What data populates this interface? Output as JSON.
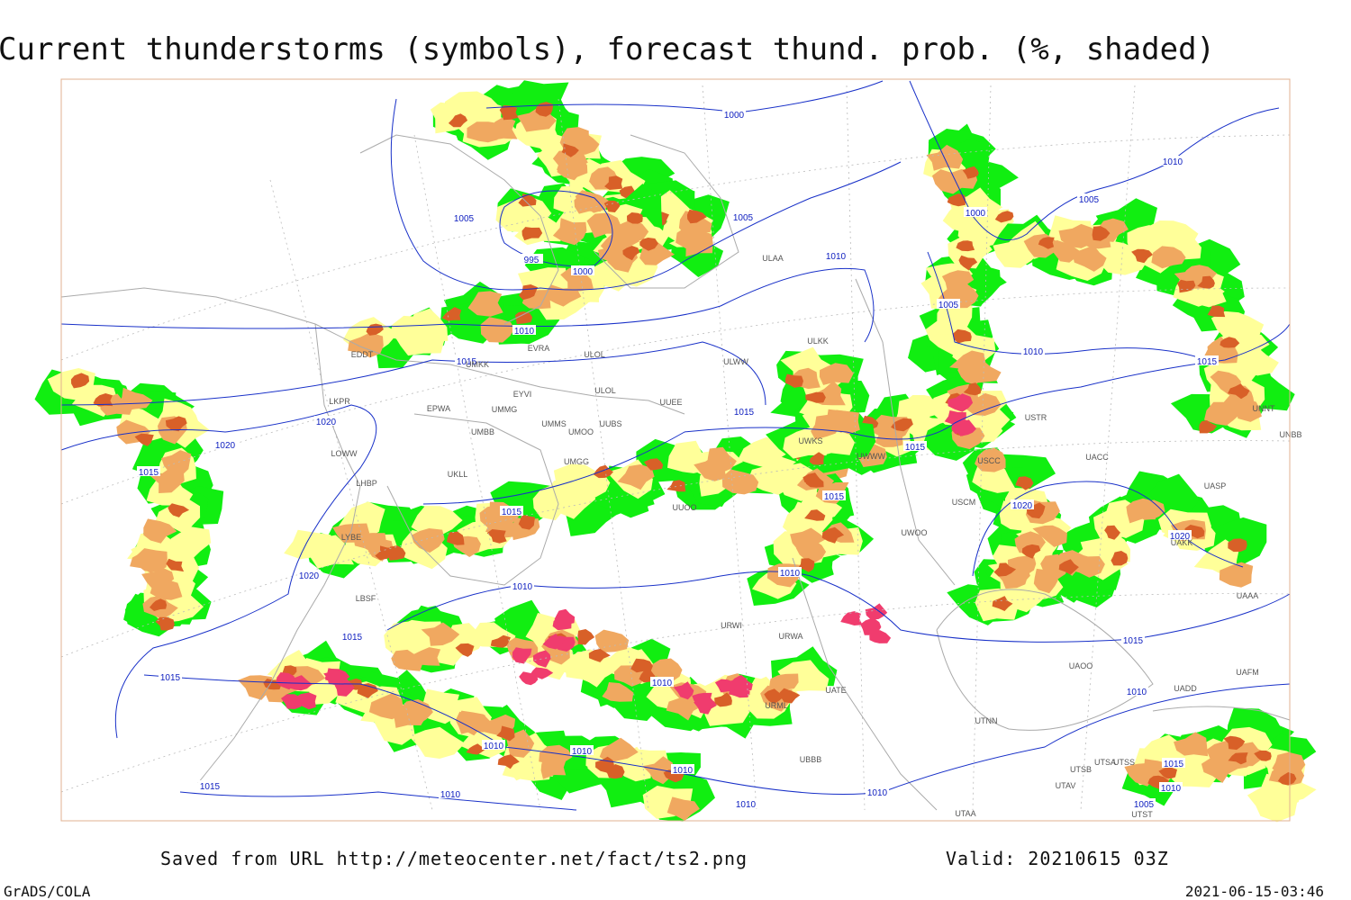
{
  "title": "Current thunderstorms (symbols), forecast thund. prob. (%, shaded)",
  "footer": {
    "source": "Saved from URL http://meteocenter.net/fact/ts2.png",
    "valid": "Valid: 20210615 03Z",
    "software": "GrADS/COLA",
    "timestamp": "2021-06-15-03:46"
  },
  "isobar_labels": [
    1000,
    1005,
    1005,
    995,
    1000,
    1010,
    1010,
    1015,
    1020,
    1020,
    1015,
    1015,
    1015,
    1015,
    1015,
    1010,
    1020,
    1010,
    1015,
    1015,
    1010,
    1010,
    1010,
    1010,
    1010,
    1010,
    1015,
    1010,
    1000,
    1005,
    1010,
    1005,
    1010,
    1015,
    1020,
    1020,
    1015,
    1010,
    1015,
    1010,
    1005
  ],
  "stations": [
    "ULAA",
    "ULKK",
    "EVRA",
    "ULOL",
    "ULWW",
    "UMKK",
    "EDDT",
    "ULOL",
    "EYVI",
    "EPWA",
    "UMMG",
    "UMMS",
    "UMOO",
    "UUBS",
    "UUEE",
    "UMBB",
    "LKPR",
    "LOWW",
    "LHBP",
    "UKLL",
    "UMGG",
    "UUOO",
    "UWKS",
    "UWWW",
    "USCC",
    "USCM",
    "UWOO",
    "USTR",
    "UNNT",
    "UNBB",
    "UACC",
    "UASP",
    "UAKK",
    "UAAA",
    "URWI",
    "URWA",
    "UATE",
    "URML",
    "UAOO",
    "UTNN",
    "UADD",
    "UAFM",
    "UTAA",
    "UTSA",
    "UTSS",
    "UTSB",
    "UTAV",
    "UTST",
    "UBBB",
    "LYBE",
    "LBSF"
  ]
}
